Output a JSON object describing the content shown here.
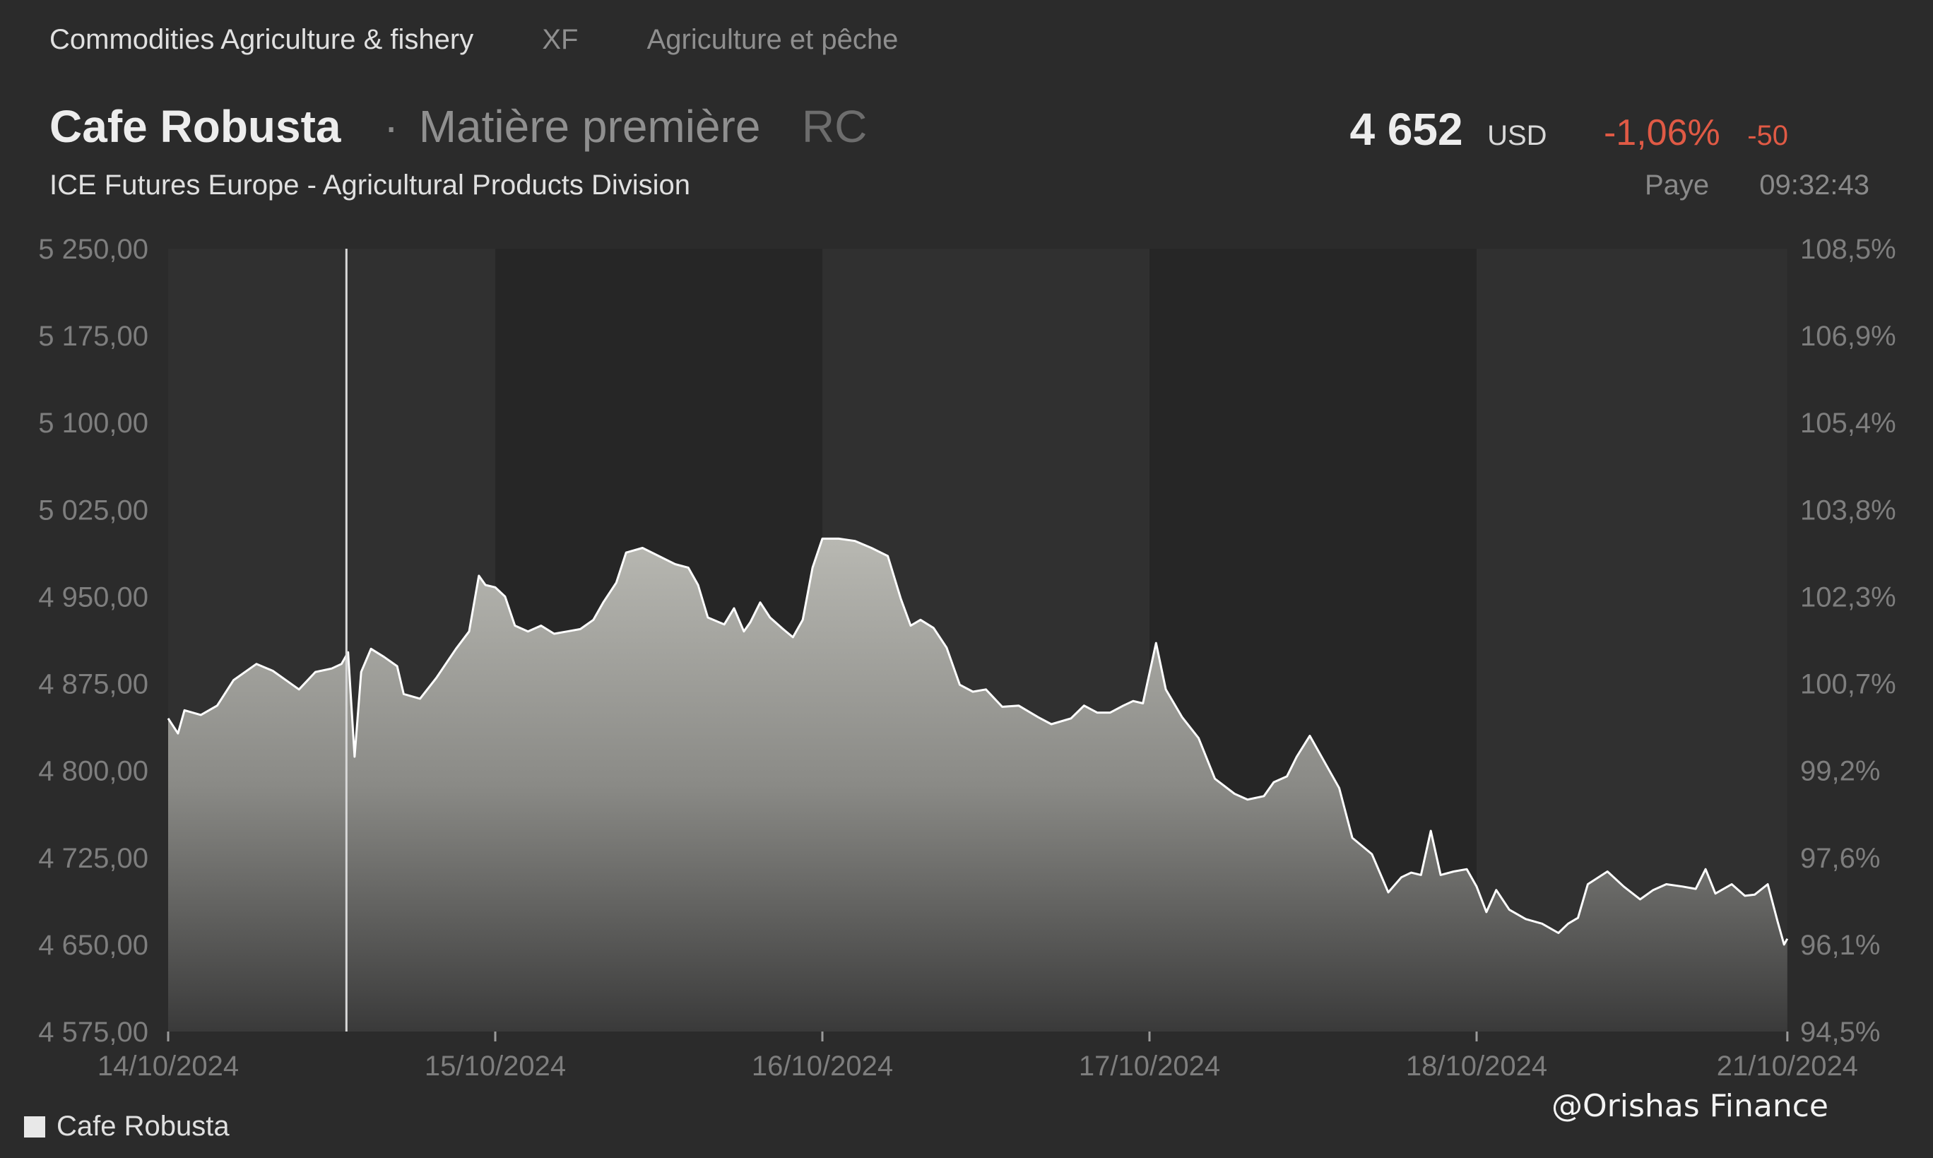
{
  "breadcrumb": {
    "category": "Commodities Agriculture & fishery",
    "code": "XF",
    "category_fr": "Agriculture et pêche"
  },
  "instrument": {
    "name": "Cafe Robusta",
    "separator": "·",
    "type": "Matière première",
    "code": "RC",
    "exchange": "ICE Futures Europe - Agricultural Products Division"
  },
  "quote": {
    "price": "4 652",
    "currency": "USD",
    "change_pct": "-1,06%",
    "change_abs": "-50",
    "status": "Paye",
    "time": "09:32:43"
  },
  "watermark": "@Orishas Finance",
  "colors": {
    "background": "#2b2b2b",
    "negative": "#e05a45",
    "line": "#ffffff"
  },
  "chart_data": {
    "type": "area",
    "legend": "Cafe Robusta",
    "legend_position": "bottom-left",
    "ylim": [
      4575,
      5250
    ],
    "y_ticks": [
      "5 250,00",
      "5 175,00",
      "5 100,00",
      "5 025,00",
      "4 950,00",
      "4 875,00",
      "4 800,00",
      "4 725,00",
      "4 650,00",
      "4 575,00"
    ],
    "y_tick_values": [
      5250,
      5175,
      5100,
      5025,
      4950,
      4875,
      4800,
      4725,
      4650,
      4575
    ],
    "y2_ticks": [
      "108,5%",
      "106,9%",
      "105,4%",
      "103,8%",
      "102,3%",
      "100,7%",
      "99,2%",
      "97,6%",
      "96,1%",
      "94,5%"
    ],
    "x_ticks": [
      "14/10/2024",
      "15/10/2024",
      "16/10/2024",
      "17/10/2024",
      "18/10/2024",
      "21/10/2024"
    ],
    "x_tick_positions": [
      0,
      1,
      2,
      3,
      4,
      4.95
    ],
    "xlim": [
      0,
      4.95
    ],
    "cursor_x": 0.545,
    "series": [
      {
        "name": "Cafe Robusta",
        "points": [
          [
            0.0,
            4845
          ],
          [
            0.03,
            4832
          ],
          [
            0.05,
            4852
          ],
          [
            0.1,
            4848
          ],
          [
            0.15,
            4856
          ],
          [
            0.2,
            4878
          ],
          [
            0.27,
            4892
          ],
          [
            0.32,
            4886
          ],
          [
            0.4,
            4870
          ],
          [
            0.45,
            4885
          ],
          [
            0.5,
            4888
          ],
          [
            0.53,
            4892
          ],
          [
            0.55,
            4902
          ],
          [
            0.57,
            4812
          ],
          [
            0.59,
            4885
          ],
          [
            0.62,
            4905
          ],
          [
            0.66,
            4898
          ],
          [
            0.7,
            4890
          ],
          [
            0.72,
            4866
          ],
          [
            0.77,
            4862
          ],
          [
            0.82,
            4880
          ],
          [
            0.88,
            4905
          ],
          [
            0.92,
            4920
          ],
          [
            0.95,
            4968
          ],
          [
            0.97,
            4960
          ],
          [
            1.0,
            4958
          ],
          [
            1.03,
            4950
          ],
          [
            1.06,
            4925
          ],
          [
            1.1,
            4920
          ],
          [
            1.14,
            4925
          ],
          [
            1.18,
            4918
          ],
          [
            1.22,
            4920
          ],
          [
            1.26,
            4922
          ],
          [
            1.3,
            4930
          ],
          [
            1.33,
            4945
          ],
          [
            1.37,
            4962
          ],
          [
            1.4,
            4988
          ],
          [
            1.45,
            4992
          ],
          [
            1.5,
            4985
          ],
          [
            1.55,
            4978
          ],
          [
            1.59,
            4975
          ],
          [
            1.62,
            4960
          ],
          [
            1.65,
            4932
          ],
          [
            1.7,
            4926
          ],
          [
            1.73,
            4940
          ],
          [
            1.76,
            4920
          ],
          [
            1.78,
            4928
          ],
          [
            1.81,
            4945
          ],
          [
            1.84,
            4932
          ],
          [
            1.88,
            4922
          ],
          [
            1.91,
            4915
          ],
          [
            1.94,
            4930
          ],
          [
            1.97,
            4975
          ],
          [
            2.0,
            5000
          ],
          [
            2.05,
            5000
          ],
          [
            2.1,
            4998
          ],
          [
            2.15,
            4992
          ],
          [
            2.2,
            4985
          ],
          [
            2.24,
            4948
          ],
          [
            2.27,
            4925
          ],
          [
            2.3,
            4930
          ],
          [
            2.34,
            4923
          ],
          [
            2.38,
            4906
          ],
          [
            2.42,
            4874
          ],
          [
            2.46,
            4868
          ],
          [
            2.5,
            4870
          ],
          [
            2.55,
            4855
          ],
          [
            2.6,
            4856
          ],
          [
            2.66,
            4846
          ],
          [
            2.7,
            4840
          ],
          [
            2.76,
            4845
          ],
          [
            2.8,
            4856
          ],
          [
            2.84,
            4850
          ],
          [
            2.88,
            4850
          ],
          [
            2.92,
            4856
          ],
          [
            2.95,
            4860
          ],
          [
            2.98,
            4858
          ],
          [
            3.02,
            4910
          ],
          [
            3.05,
            4870
          ],
          [
            3.1,
            4846
          ],
          [
            3.15,
            4828
          ],
          [
            3.2,
            4793
          ],
          [
            3.26,
            4780
          ],
          [
            3.3,
            4775
          ],
          [
            3.35,
            4778
          ],
          [
            3.38,
            4790
          ],
          [
            3.42,
            4795
          ],
          [
            3.45,
            4812
          ],
          [
            3.49,
            4830
          ],
          [
            3.53,
            4810
          ],
          [
            3.58,
            4785
          ],
          [
            3.62,
            4742
          ],
          [
            3.68,
            4728
          ],
          [
            3.73,
            4695
          ],
          [
            3.77,
            4708
          ],
          [
            3.8,
            4712
          ],
          [
            3.83,
            4710
          ],
          [
            3.86,
            4748
          ],
          [
            3.89,
            4710
          ],
          [
            3.93,
            4713
          ],
          [
            3.97,
            4715
          ],
          [
            4.0,
            4700
          ],
          [
            4.03,
            4678
          ],
          [
            4.06,
            4697
          ],
          [
            4.1,
            4680
          ],
          [
            4.15,
            4672
          ],
          [
            4.2,
            4668
          ],
          [
            4.25,
            4660
          ],
          [
            4.28,
            4668
          ],
          [
            4.31,
            4673
          ],
          [
            4.34,
            4702
          ],
          [
            4.4,
            4713
          ],
          [
            4.45,
            4700
          ],
          [
            4.5,
            4689
          ],
          [
            4.54,
            4697
          ],
          [
            4.58,
            4702
          ],
          [
            4.63,
            4700
          ],
          [
            4.67,
            4698
          ],
          [
            4.7,
            4715
          ],
          [
            4.73,
            4694
          ],
          [
            4.78,
            4702
          ],
          [
            4.82,
            4692
          ],
          [
            4.85,
            4693
          ],
          [
            4.89,
            4702
          ],
          [
            4.92,
            4670
          ],
          [
            4.94,
            4650
          ],
          [
            4.95,
            4655
          ]
        ]
      }
    ]
  }
}
